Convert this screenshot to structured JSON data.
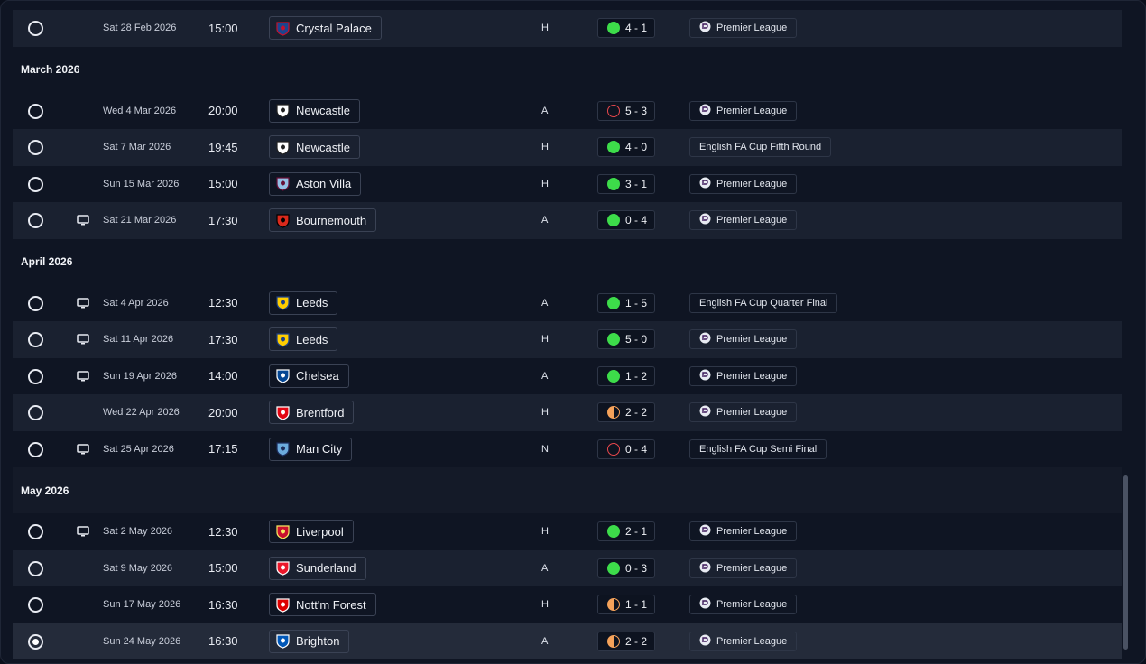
{
  "colors": {
    "win": "#3ddc4a",
    "loss": "#e8474c",
    "draw": "#f5a25a"
  },
  "fixtures": [
    {
      "type": "row",
      "alt": true,
      "selected": false,
      "tv": false,
      "date": "Sat 28 Feb 2026",
      "time": "15:00",
      "team": "Crystal Palace",
      "crest": "crystal-palace-crest",
      "venue": "H",
      "outcome": "win",
      "score": "4 - 1",
      "competition": "Premier League",
      "pl_icon": true
    },
    {
      "type": "month",
      "label": "March 2026",
      "highlight": false
    },
    {
      "type": "row",
      "alt": false,
      "selected": false,
      "tv": false,
      "date": "Wed 4 Mar 2026",
      "time": "20:00",
      "team": "Newcastle",
      "crest": "newcastle-crest",
      "venue": "A",
      "outcome": "loss",
      "score": "5 - 3",
      "competition": "Premier League",
      "pl_icon": true
    },
    {
      "type": "row",
      "alt": true,
      "selected": false,
      "tv": false,
      "date": "Sat 7 Mar 2026",
      "time": "19:45",
      "team": "Newcastle",
      "crest": "newcastle-crest",
      "venue": "H",
      "outcome": "win",
      "score": "4 - 0",
      "competition": "English FA Cup Fifth Round",
      "pl_icon": false
    },
    {
      "type": "row",
      "alt": false,
      "selected": false,
      "tv": false,
      "date": "Sun 15 Mar 2026",
      "time": "15:00",
      "team": "Aston Villa",
      "crest": "aston-villa-crest",
      "venue": "H",
      "outcome": "win",
      "score": "3 - 1",
      "competition": "Premier League",
      "pl_icon": true
    },
    {
      "type": "row",
      "alt": true,
      "selected": false,
      "tv": true,
      "date": "Sat 21 Mar 2026",
      "time": "17:30",
      "team": "Bournemouth",
      "crest": "bournemouth-crest",
      "venue": "A",
      "outcome": "win",
      "score": "0 - 4",
      "competition": "Premier League",
      "pl_icon": true
    },
    {
      "type": "month",
      "label": "April 2026",
      "highlight": false
    },
    {
      "type": "row",
      "alt": false,
      "selected": false,
      "tv": true,
      "date": "Sat 4 Apr 2026",
      "time": "12:30",
      "team": "Leeds",
      "crest": "leeds-crest",
      "venue": "A",
      "outcome": "win",
      "score": "1 - 5",
      "competition": "English FA Cup Quarter Final",
      "pl_icon": false
    },
    {
      "type": "row",
      "alt": true,
      "selected": false,
      "tv": true,
      "date": "Sat 11 Apr 2026",
      "time": "17:30",
      "team": "Leeds",
      "crest": "leeds-crest",
      "venue": "H",
      "outcome": "win",
      "score": "5 - 0",
      "competition": "Premier League",
      "pl_icon": true
    },
    {
      "type": "row",
      "alt": false,
      "selected": false,
      "tv": true,
      "date": "Sun 19 Apr 2026",
      "time": "14:00",
      "team": "Chelsea",
      "crest": "chelsea-crest",
      "venue": "A",
      "outcome": "win",
      "score": "1 - 2",
      "competition": "Premier League",
      "pl_icon": true
    },
    {
      "type": "row",
      "alt": true,
      "selected": false,
      "tv": false,
      "date": "Wed 22 Apr 2026",
      "time": "20:00",
      "team": "Brentford",
      "crest": "brentford-crest",
      "venue": "H",
      "outcome": "draw",
      "score": "2 - 2",
      "competition": "Premier League",
      "pl_icon": true
    },
    {
      "type": "row",
      "alt": false,
      "selected": false,
      "tv": true,
      "date": "Sat 25 Apr 2026",
      "time": "17:15",
      "team": "Man City",
      "crest": "man-city-crest",
      "venue": "N",
      "outcome": "loss",
      "score": "0 - 4",
      "competition": "English FA Cup Semi Final",
      "pl_icon": false
    },
    {
      "type": "month",
      "label": "May 2026",
      "highlight": true
    },
    {
      "type": "row",
      "alt": false,
      "selected": false,
      "tv": true,
      "date": "Sat 2 May 2026",
      "time": "12:30",
      "team": "Liverpool",
      "crest": "liverpool-crest",
      "venue": "H",
      "outcome": "win",
      "score": "2 - 1",
      "competition": "Premier League",
      "pl_icon": true
    },
    {
      "type": "row",
      "alt": true,
      "selected": false,
      "tv": false,
      "date": "Sat 9 May 2026",
      "time": "15:00",
      "team": "Sunderland",
      "crest": "sunderland-crest",
      "venue": "A",
      "outcome": "win",
      "score": "0 - 3",
      "competition": "Premier League",
      "pl_icon": true
    },
    {
      "type": "row",
      "alt": false,
      "selected": false,
      "tv": false,
      "date": "Sun 17 May 2026",
      "time": "16:30",
      "team": "Nott'm Forest",
      "crest": "nottm-forest-crest",
      "venue": "H",
      "outcome": "draw",
      "score": "1 - 1",
      "competition": "Premier League",
      "pl_icon": true
    },
    {
      "type": "row",
      "alt": true,
      "selected": true,
      "tv": false,
      "date": "Sun 24 May 2026",
      "time": "16:30",
      "team": "Brighton",
      "crest": "brighton-crest",
      "venue": "A",
      "outcome": "draw",
      "score": "2 - 2",
      "competition": "Premier League",
      "pl_icon": true
    }
  ]
}
